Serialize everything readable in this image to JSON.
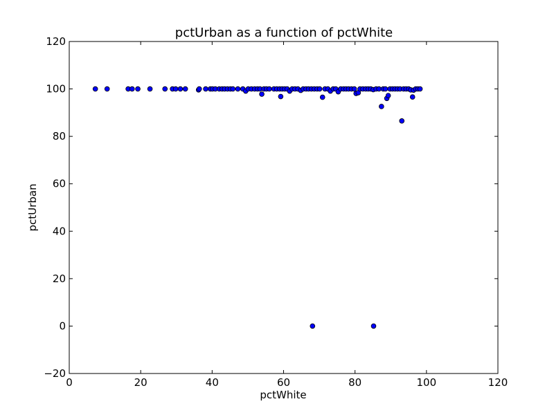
{
  "chart_data": {
    "type": "scatter",
    "title": "pctUrban as a function of pctWhite",
    "xlabel": "pctWhite",
    "ylabel": "pctUrban",
    "xlim": [
      0,
      120
    ],
    "ylim": [
      -20,
      120
    ],
    "xticks": [
      "0",
      "20",
      "40",
      "60",
      "80",
      "100",
      "120"
    ],
    "yticks": [
      "−20",
      "0",
      "20",
      "40",
      "60",
      "80",
      "100",
      "120"
    ],
    "grid": false,
    "legend": "none",
    "colors": {
      "marker_fill": "#0000ff",
      "marker_edge": "#000000"
    },
    "series": [
      {
        "points": [
          [
            7.3,
            100
          ],
          [
            10.6,
            100
          ],
          [
            16.5,
            100
          ],
          [
            17.6,
            100
          ],
          [
            19.2,
            100
          ],
          [
            22.6,
            100
          ],
          [
            26.8,
            100
          ],
          [
            28.9,
            100
          ],
          [
            29.8,
            100
          ],
          [
            31.1,
            100
          ],
          [
            32.5,
            100
          ],
          [
            36.2,
            99.6
          ],
          [
            36.4,
            100
          ],
          [
            38.2,
            100
          ],
          [
            39.5,
            100
          ],
          [
            40.1,
            100
          ],
          [
            40.9,
            100
          ],
          [
            42.0,
            100
          ],
          [
            42.8,
            100
          ],
          [
            43.5,
            100
          ],
          [
            44.3,
            100
          ],
          [
            45.1,
            100
          ],
          [
            45.8,
            100
          ],
          [
            47.2,
            100
          ],
          [
            48.6,
            100
          ],
          [
            49.4,
            99.1
          ],
          [
            50.1,
            100
          ],
          [
            51.0,
            100
          ],
          [
            51.9,
            100
          ],
          [
            52.7,
            100
          ],
          [
            53.4,
            100
          ],
          [
            53.9,
            97.8
          ],
          [
            54.5,
            100
          ],
          [
            55.2,
            100
          ],
          [
            56.0,
            100
          ],
          [
            57.3,
            100
          ],
          [
            58.1,
            100
          ],
          [
            58.9,
            100
          ],
          [
            59.2,
            96.8
          ],
          [
            59.6,
            100
          ],
          [
            60.3,
            100
          ],
          [
            61.0,
            100
          ],
          [
            61.7,
            99.1
          ],
          [
            62.4,
            100
          ],
          [
            63.2,
            100
          ],
          [
            64.0,
            100
          ],
          [
            64.8,
            99.4
          ],
          [
            65.5,
            100
          ],
          [
            66.3,
            100
          ],
          [
            67.0,
            100
          ],
          [
            67.8,
            100
          ],
          [
            68.6,
            100
          ],
          [
            69.4,
            100
          ],
          [
            70.1,
            100
          ],
          [
            70.9,
            96.5
          ],
          [
            71.6,
            100
          ],
          [
            72.4,
            100
          ],
          [
            73.1,
            99.1
          ],
          [
            73.9,
            100
          ],
          [
            74.6,
            100
          ],
          [
            75.3,
            98.8
          ],
          [
            76.0,
            100
          ],
          [
            76.8,
            100
          ],
          [
            77.5,
            100
          ],
          [
            78.2,
            100
          ],
          [
            79.0,
            100
          ],
          [
            79.8,
            100
          ],
          [
            80.3,
            98.1
          ],
          [
            80.9,
            98.4
          ],
          [
            81.4,
            100
          ],
          [
            82.2,
            100
          ],
          [
            83.0,
            100
          ],
          [
            83.7,
            100
          ],
          [
            84.4,
            100
          ],
          [
            85.1,
            99.7
          ],
          [
            85.9,
            100
          ],
          [
            86.7,
            100
          ],
          [
            87.4,
            92.6
          ],
          [
            87.9,
            100
          ],
          [
            88.5,
            100
          ],
          [
            88.9,
            96.0
          ],
          [
            89.3,
            97.2
          ],
          [
            89.8,
            100
          ],
          [
            90.5,
            100
          ],
          [
            91.2,
            100
          ],
          [
            91.9,
            100
          ],
          [
            92.6,
            100
          ],
          [
            93.1,
            86.5
          ],
          [
            93.6,
            100
          ],
          [
            94.3,
            100
          ],
          [
            95.0,
            100
          ],
          [
            95.6,
            99.6
          ],
          [
            96.1,
            96.6
          ],
          [
            96.4,
            99.5
          ],
          [
            97.0,
            100
          ],
          [
            97.6,
            100
          ],
          [
            98.2,
            100
          ],
          [
            68.1,
            0
          ],
          [
            85.2,
            0
          ]
        ]
      }
    ]
  }
}
